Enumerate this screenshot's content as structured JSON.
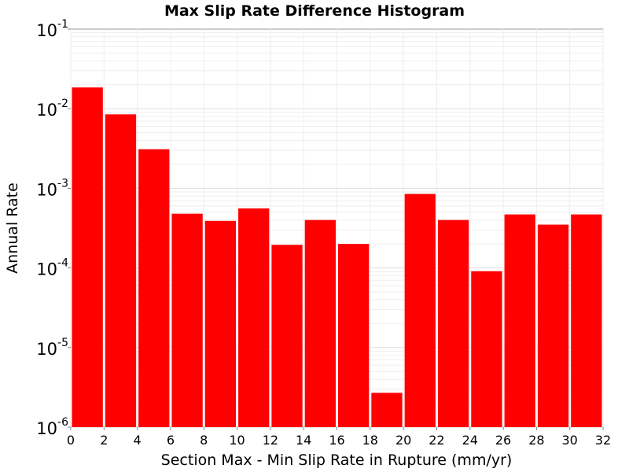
{
  "chart_data": {
    "type": "bar",
    "title": "Max Slip Rate Difference Histogram",
    "xlabel": "Section Max - Min Slip Rate in Rupture (mm/yr)",
    "ylabel": "Annual Rate",
    "yscale": "log",
    "xlim": [
      0,
      32
    ],
    "ylim": [
      1e-06,
      0.1
    ],
    "grid": true,
    "bar_color": "#ff0000",
    "bin_width": 2,
    "x_ticks": [
      "0",
      "2",
      "4",
      "6",
      "8",
      "10",
      "12",
      "14",
      "16",
      "18",
      "20",
      "22",
      "24",
      "26",
      "28",
      "30",
      "32"
    ],
    "y_ticks": [
      {
        "base": "10",
        "exp": "-6",
        "value": 1e-06
      },
      {
        "base": "10",
        "exp": "-5",
        "value": 1e-05
      },
      {
        "base": "10",
        "exp": "-4",
        "value": 0.0001
      },
      {
        "base": "10",
        "exp": "-3",
        "value": 0.001
      },
      {
        "base": "10",
        "exp": "-2",
        "value": 0.01
      },
      {
        "base": "10",
        "exp": "-1",
        "value": 0.1
      }
    ],
    "bins": [
      {
        "x0": 0,
        "x1": 2,
        "value": 0.0185
      },
      {
        "x0": 2,
        "x1": 4,
        "value": 0.0085
      },
      {
        "x0": 4,
        "x1": 6,
        "value": 0.0031
      },
      {
        "x0": 6,
        "x1": 8,
        "value": 0.00048
      },
      {
        "x0": 8,
        "x1": 10,
        "value": 0.00039
      },
      {
        "x0": 10,
        "x1": 12,
        "value": 0.00056
      },
      {
        "x0": 12,
        "x1": 14,
        "value": 0.000195
      },
      {
        "x0": 14,
        "x1": 16,
        "value": 0.0004
      },
      {
        "x0": 16,
        "x1": 18,
        "value": 0.0002
      },
      {
        "x0": 18,
        "x1": 20,
        "value": 2.7e-06
      },
      {
        "x0": 20,
        "x1": 22,
        "value": 0.00085
      },
      {
        "x0": 22,
        "x1": 24,
        "value": 0.0004
      },
      {
        "x0": 24,
        "x1": 26,
        "value": 9.1e-05
      },
      {
        "x0": 26,
        "x1": 28,
        "value": 0.00047
      },
      {
        "x0": 28,
        "x1": 30,
        "value": 0.00035
      },
      {
        "x0": 30,
        "x1": 32,
        "value": 0.00047
      }
    ]
  }
}
